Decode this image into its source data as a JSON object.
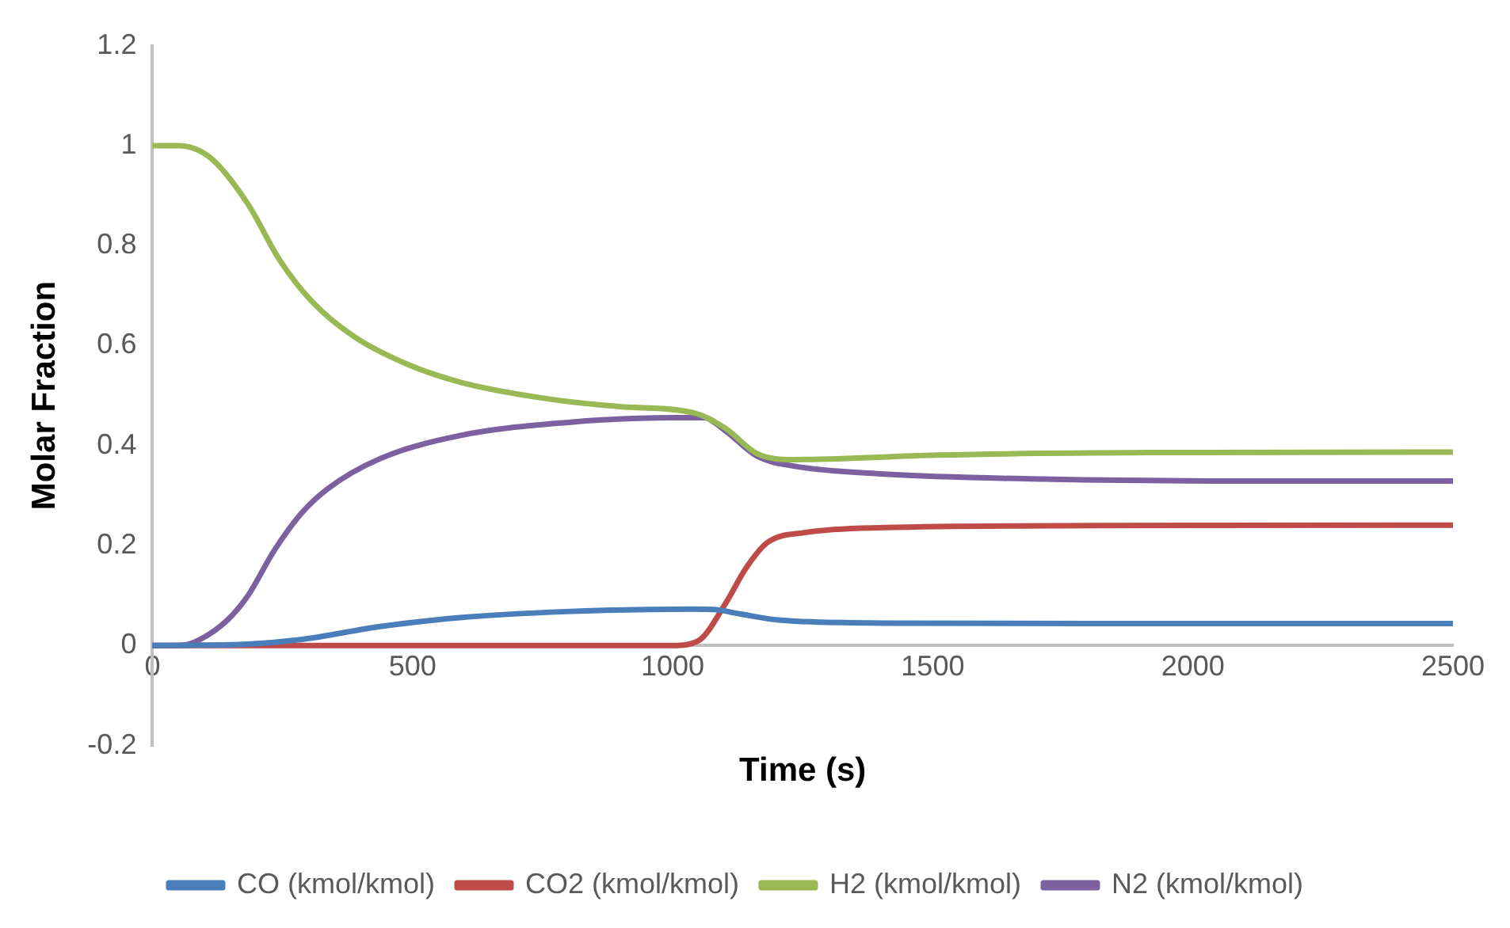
{
  "chart_data": {
    "type": "line",
    "xlabel": "Time (s)",
    "ylabel": "Molar Fraction",
    "xlim": [
      0,
      2500
    ],
    "xticks": [
      0,
      500,
      1000,
      1500,
      2000,
      2500
    ],
    "ylim": [
      -0.2,
      1.2
    ],
    "yticks": [
      -0.2,
      0,
      0.2,
      0.4,
      0.6,
      0.8,
      1,
      1.2
    ],
    "grid": false,
    "legend": "bottom",
    "marker": "none",
    "line_style": "solid",
    "series": [
      {
        "name": "CO (kmol/kmol)",
        "color": "#4a7ebb",
        "x": [
          0,
          183,
          285,
          438,
          591,
          795,
          1039,
          1080,
          1131,
          1203,
          1407,
          1800,
          2500
        ],
        "values": [
          0,
          0.003,
          0.012,
          0.038,
          0.056,
          0.068,
          0.073,
          0.072,
          0.063,
          0.051,
          0.045,
          0.044,
          0.044
        ]
      },
      {
        "name": "CO2 (kmol/kmol)",
        "color": "#be4b48",
        "x": [
          0,
          1000,
          1050,
          1101,
          1141,
          1182,
          1254,
          1407,
          1815,
          2500
        ],
        "values": [
          0,
          0,
          0.01,
          0.083,
          0.155,
          0.206,
          0.226,
          0.236,
          0.24,
          0.241
        ]
      },
      {
        "name": "H2 (kmol/kmol)",
        "color": "#98b954",
        "x": [
          0,
          50,
          111,
          183,
          244,
          305,
          386,
          489,
          591,
          744,
          897,
          1039,
          1101,
          1162,
          1233,
          1509,
          1916,
          2500
        ],
        "values": [
          1,
          1,
          0.976,
          0.884,
          0.772,
          0.69,
          0.619,
          0.563,
          0.527,
          0.496,
          0.478,
          0.466,
          0.435,
          0.384,
          0.372,
          0.381,
          0.386,
          0.387
        ]
      },
      {
        "name": "N2 (kmol/kmol)",
        "color": "#7d60a0",
        "x": [
          0,
          50,
          81,
          142,
          183,
          234,
          285,
          336,
          438,
          591,
          795,
          999,
          1060,
          1101,
          1162,
          1233,
          1407,
          1713,
          2121,
          2500
        ],
        "values": [
          0,
          0,
          0.007,
          0.049,
          0.099,
          0.19,
          0.263,
          0.313,
          0.374,
          0.42,
          0.446,
          0.456,
          0.456,
          0.43,
          0.379,
          0.359,
          0.343,
          0.333,
          0.329,
          0.329
        ]
      }
    ]
  }
}
